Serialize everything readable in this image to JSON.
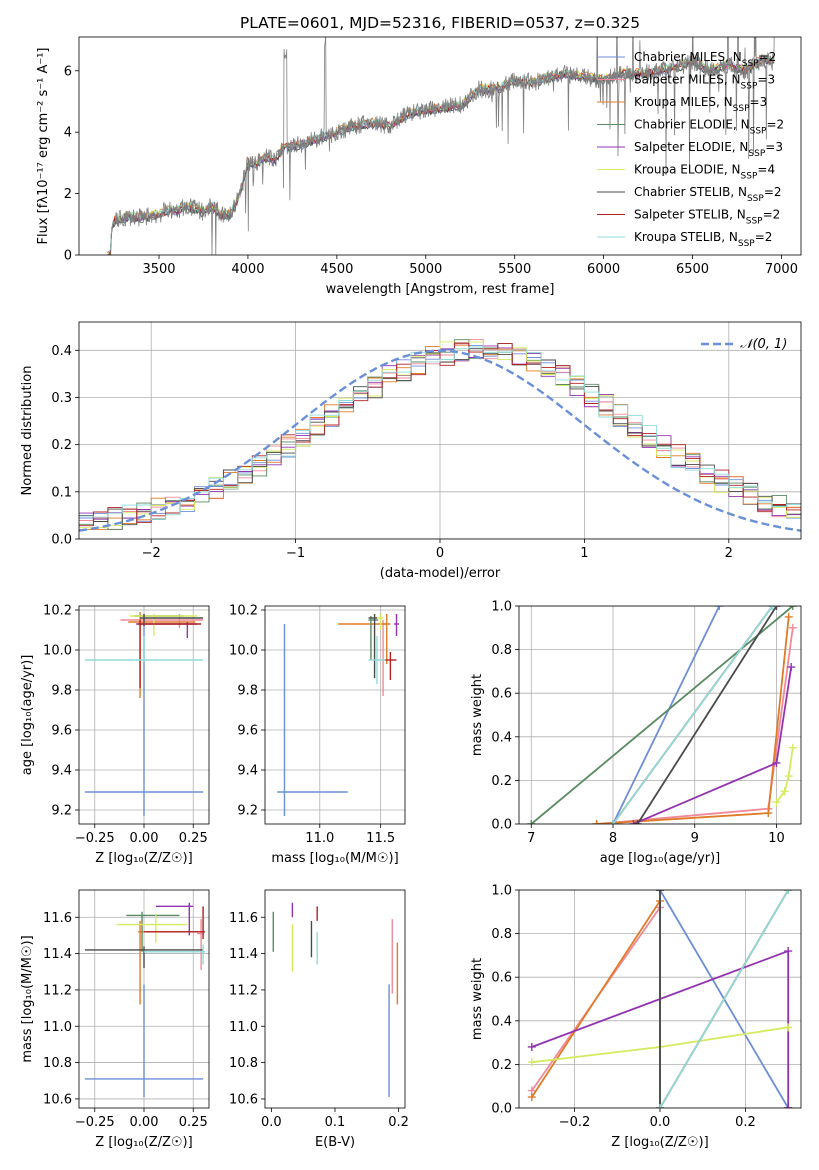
{
  "chart_data": [
    {
      "id": "spectrum",
      "type": "line",
      "title": "PLATE=0601, MJD=52316, FIBERID=0537, z=0.325",
      "xlabel": "wavelength [Angstrom, rest frame]",
      "ylabel": "Flux [fλ10⁻¹⁷ erg cm⁻² s⁻¹ A⁻¹]",
      "xlim": [
        3050,
        7110
      ],
      "ylim": [
        0,
        7.1
      ],
      "xticks": [
        3500,
        4000,
        4500,
        5000,
        5500,
        6000,
        6500,
        7000
      ],
      "yticks": [
        0,
        2,
        4,
        6
      ],
      "legend_position": "top-right",
      "observed": {
        "color": "#808080",
        "x": [
          3210,
          3250,
          3300,
          3350,
          3400,
          3450,
          3500,
          3550,
          3600,
          3650,
          3700,
          3750,
          3800,
          3850,
          3900,
          3950,
          4000,
          4050,
          4100,
          4150,
          4200,
          4300,
          4400,
          4500,
          4600,
          4700,
          4800,
          4900,
          5000,
          5100,
          5200,
          5300,
          5400,
          5500,
          5600,
          5700,
          5800,
          5900,
          6000,
          6100,
          6200,
          6300,
          6400,
          6500,
          6600,
          6700,
          6800,
          6900,
          6950
        ],
        "y": [
          0.0,
          1.1,
          1.2,
          1.25,
          1.2,
          1.3,
          1.3,
          1.5,
          1.4,
          1.6,
          1.5,
          1.4,
          1.6,
          1.3,
          1.3,
          1.9,
          3.0,
          3.0,
          3.2,
          3.1,
          3.5,
          3.6,
          3.8,
          4.0,
          4.2,
          4.3,
          4.2,
          4.6,
          4.7,
          4.8,
          4.9,
          5.4,
          5.4,
          5.7,
          5.6,
          5.8,
          5.9,
          5.8,
          5.7,
          5.9,
          5.9,
          6.0,
          6.1,
          6.3,
          6.0,
          6.2,
          6.0,
          6.4,
          6.3
        ]
      },
      "series": [
        {
          "name": "Chabrier MILES, N_SSP=2",
          "color": "#6c8ed9"
        },
        {
          "name": "Salpeter MILES, N_SSP=3",
          "color": "#f08a9a"
        },
        {
          "name": "Kroupa MILES, N_SSP=3",
          "color": "#e07b28"
        },
        {
          "name": "Chabrier ELODIE, N_SSP=2",
          "color": "#5a8a62"
        },
        {
          "name": "Salpeter ELODIE, N_SSP=3",
          "color": "#9433b0"
        },
        {
          "name": "Kroupa ELODIE, N_SSP=4",
          "color": "#d6ea60"
        },
        {
          "name": "Chabrier STELIB, N_SSP=2",
          "color": "#4a4a4a"
        },
        {
          "name": "Salpeter STELIB, N_SSP=2",
          "color": "#b22222"
        },
        {
          "name": "Kroupa STELIB, N_SSP=2",
          "color": "#8fdcd8"
        }
      ]
    },
    {
      "id": "residuals",
      "type": "line",
      "xlabel": "(data-model)/error",
      "ylabel": "Normed distribution",
      "xlim": [
        -2.5,
        2.5
      ],
      "ylim": [
        0,
        0.46
      ],
      "xticks": [
        -2,
        -1,
        0,
        1,
        2
      ],
      "yticks": [
        0.0,
        0.1,
        0.2,
        0.3,
        0.4
      ],
      "grid": true,
      "legend_position": "top-right",
      "reference": {
        "name": "𝒩(0, 1)",
        "color": "#6a90d8",
        "style": "dashed",
        "mu": 0,
        "sigma": 1
      },
      "histogram_bins": {
        "start": -2.5,
        "width": 0.1,
        "count": 50
      },
      "histogram_colors": [
        "#6c8ed9",
        "#f08a9a",
        "#e07b28",
        "#5a8a62",
        "#9433b0",
        "#d6ea60",
        "#4a4a4a",
        "#b22222",
        "#8fdcd8"
      ]
    },
    {
      "id": "age-vs-Z",
      "type": "scatter",
      "xlabel": "Z [log₁₀(Z/Z☉)]",
      "ylabel": "age [log₁₀(age/yr)]",
      "xlim": [
        -0.33,
        0.33
      ],
      "ylim": [
        9.13,
        10.22
      ],
      "xticks": [
        -0.25,
        0.0,
        0.25
      ],
      "yticks": [
        9.2,
        9.4,
        9.6,
        9.8,
        10.0,
        10.2
      ],
      "grid": true,
      "errorbars": [
        {
          "color": "#6c8ed9",
          "x": 0.0,
          "y": 9.29,
          "xerr": [
            0.3,
            0.3
          ],
          "yerr": [
            0.12,
            0.84
          ]
        },
        {
          "color": "#f08a9a",
          "x": 0.18,
          "y": 10.15,
          "xerr": [
            0.3,
            0.12
          ],
          "yerr": [
            0.04,
            0.03
          ]
        },
        {
          "color": "#e07b28",
          "x": -0.02,
          "y": 10.14,
          "xerr": [
            0.06,
            0.28
          ],
          "yerr": [
            0.38,
            0.05
          ]
        },
        {
          "color": "#5a8a62",
          "x": 0.0,
          "y": 10.17,
          "xerr": [
            0.05,
            0.2
          ],
          "yerr": [
            0.02,
            0.01
          ]
        },
        {
          "color": "#9433b0",
          "x": 0.22,
          "y": 10.13,
          "xerr": [
            0.26,
            0.05
          ],
          "yerr": [
            0.07,
            0.01
          ]
        },
        {
          "color": "#d6ea60",
          "x": 0.05,
          "y": 10.17,
          "xerr": [
            0.12,
            0.22
          ],
          "yerr": [
            0.1,
            0.01
          ]
        },
        {
          "color": "#4a4a4a",
          "x": 0.0,
          "y": 10.16,
          "xerr": [
            0.02,
            0.3
          ],
          "yerr": [
            0.04,
            0.02
          ]
        },
        {
          "color": "#b22222",
          "x": -0.02,
          "y": 10.13,
          "xerr": [
            0.01,
            0.31
          ],
          "yerr": [
            0.32,
            0.02
          ]
        },
        {
          "color": "#8fdcd8",
          "x": 0.0,
          "y": 9.95,
          "xerr": [
            0.3,
            0.3
          ],
          "yerr": [
            0.01,
            0.12
          ]
        }
      ]
    },
    {
      "id": "age-vs-mass",
      "type": "scatter",
      "xlabel": "mass [log₁₀(M/M☉)]",
      "ylabel": "",
      "xlim": [
        10.55,
        11.7
      ],
      "ylim": [
        9.13,
        10.22
      ],
      "xticks": [
        11.0,
        11.5
      ],
      "yticks": [
        9.2,
        9.4,
        9.6,
        9.8,
        10.0,
        10.2
      ],
      "grid": true,
      "errorbars": [
        {
          "color": "#6c8ed9",
          "x": 10.71,
          "y": 9.29,
          "xerr": [
            0.06,
            0.52
          ],
          "yerr": [
            0.12,
            0.84
          ]
        },
        {
          "color": "#f08a9a",
          "x": 11.52,
          "y": 10.13,
          "xerr": [
            0.02,
            0.05
          ],
          "yerr": [
            0.36,
            0.02
          ]
        },
        {
          "color": "#e07b28",
          "x": 11.55,
          "y": 10.13,
          "xerr": [
            0.4,
            0.03
          ],
          "yerr": [
            0.2,
            0.05
          ]
        },
        {
          "color": "#5a8a62",
          "x": 11.42,
          "y": 10.15,
          "xerr": [
            0.02,
            0.06
          ],
          "yerr": [
            0.2,
            0.02
          ]
        },
        {
          "color": "#9433b0",
          "x": 11.63,
          "y": 10.13,
          "xerr": [
            0.02,
            0.02
          ],
          "yerr": [
            0.06,
            0.05
          ]
        },
        {
          "color": "#d6ea60",
          "x": 11.5,
          "y": 10.16,
          "xerr": [
            0.04,
            0.02
          ],
          "yerr": [
            0.06,
            0.02
          ]
        },
        {
          "color": "#4a4a4a",
          "x": 11.45,
          "y": 10.16,
          "xerr": [
            0.05,
            0.02
          ],
          "yerr": [
            0.3,
            0.02
          ]
        },
        {
          "color": "#b22222",
          "x": 11.58,
          "y": 9.95,
          "xerr": [
            0.05,
            0.05
          ],
          "yerr": [
            0.1,
            0.04
          ]
        },
        {
          "color": "#8fdcd8",
          "x": 11.47,
          "y": 9.95,
          "xerr": [
            0.07,
            0.07
          ],
          "yerr": [
            0.12,
            0.12
          ]
        }
      ]
    },
    {
      "id": "mass-weight-vs-age",
      "type": "line",
      "xlabel": "age [log₁₀(age/yr)]",
      "ylabel": "mass weight",
      "xlim": [
        6.85,
        10.3
      ],
      "ylim": [
        0,
        1.0
      ],
      "xticks": [
        7,
        8,
        9,
        10
      ],
      "yticks": [
        0.0,
        0.2,
        0.4,
        0.6,
        0.8,
        1.0
      ],
      "grid": true,
      "series": [
        {
          "color": "#6c8ed9",
          "x": [
            8.0,
            9.3
          ],
          "y": [
            0.0,
            1.0
          ]
        },
        {
          "color": "#f08a9a",
          "x": [
            7.8,
            9.9,
            10.2
          ],
          "y": [
            0.0,
            0.07,
            0.9
          ]
        },
        {
          "color": "#e07b28",
          "x": [
            7.8,
            9.9,
            10.15
          ],
          "y": [
            0.0,
            0.05,
            0.95
          ]
        },
        {
          "color": "#5a8a62",
          "x": [
            7.0,
            10.2
          ],
          "y": [
            0.0,
            1.0
          ]
        },
        {
          "color": "#9433b0",
          "x": [
            8.25,
            10.0,
            10.18
          ],
          "y": [
            0.0,
            0.28,
            0.72
          ]
        },
        {
          "color": "#d6ea60",
          "x": [
            10.0,
            10.1,
            10.15,
            10.2
          ],
          "y": [
            0.1,
            0.15,
            0.22,
            0.35
          ]
        },
        {
          "color": "#4a4a4a",
          "x": [
            8.3,
            10.0
          ],
          "y": [
            0.0,
            1.0
          ]
        },
        {
          "color": "#b22222",
          "x": [
            8.0,
            9.95
          ],
          "y": [
            0.0,
            1.0
          ]
        },
        {
          "color": "#8fdcd8",
          "x": [
            8.0,
            9.95
          ],
          "y": [
            0.0,
            1.0
          ]
        }
      ]
    },
    {
      "id": "mass-vs-Z",
      "type": "scatter",
      "xlabel": "Z [log₁₀(Z/Z☉)]",
      "ylabel": "mass [log₁₀(M/M☉)]",
      "xlim": [
        -0.33,
        0.33
      ],
      "ylim": [
        10.55,
        11.75
      ],
      "xticks": [
        -0.25,
        0.0,
        0.25
      ],
      "yticks": [
        10.6,
        10.8,
        11.0,
        11.2,
        11.4,
        11.6
      ],
      "grid": true,
      "errorbars": [
        {
          "color": "#6c8ed9",
          "x": 0.0,
          "y": 10.71,
          "xerr": [
            0.3,
            0.3
          ],
          "yerr": [
            0.1,
            0.52
          ]
        },
        {
          "color": "#f08a9a",
          "x": 0.29,
          "y": 11.51,
          "xerr": [
            0.02,
            0.01
          ],
          "yerr": [
            0.2,
            0.08
          ]
        },
        {
          "color": "#e07b28",
          "x": -0.02,
          "y": 11.52,
          "xerr": [
            0.01,
            0.3
          ],
          "yerr": [
            0.4,
            0.06
          ]
        },
        {
          "color": "#5a8a62",
          "x": -0.01,
          "y": 11.61,
          "xerr": [
            0.08,
            0.19
          ],
          "yerr": [
            0.2,
            0.02
          ]
        },
        {
          "color": "#9433b0",
          "x": 0.23,
          "y": 11.66,
          "xerr": [
            0.17,
            0.02
          ],
          "yerr": [
            0.16,
            0.02
          ]
        },
        {
          "color": "#d6ea60",
          "x": 0.06,
          "y": 11.56,
          "xerr": [
            0.2,
            0.16
          ],
          "yerr": [
            0.1,
            0.06
          ]
        },
        {
          "color": "#4a4a4a",
          "x": 0.0,
          "y": 11.42,
          "xerr": [
            0.3,
            0.3
          ],
          "yerr": [
            0.1,
            0.02
          ]
        },
        {
          "color": "#b22222",
          "x": 0.3,
          "y": 11.52,
          "xerr": [
            0.3,
            0.01
          ],
          "yerr": [
            0.04,
            0.14
          ]
        },
        {
          "color": "#8fdcd8",
          "x": 0.3,
          "y": 11.41,
          "xerr": [
            0.3,
            0.01
          ],
          "yerr": [
            0.07,
            0.04
          ]
        }
      ]
    },
    {
      "id": "mass-vs-EBV",
      "type": "scatter",
      "xlabel": "E(B-V)",
      "ylabel": "",
      "xlim": [
        -0.01,
        0.21
      ],
      "ylim": [
        10.55,
        11.75
      ],
      "xticks": [
        0.0,
        0.1,
        0.2
      ],
      "yticks": [
        10.6,
        10.8,
        11.0,
        11.2,
        11.4,
        11.6
      ],
      "grid": false,
      "errorbars": [
        {
          "color": "#6c8ed9",
          "x": 0.185,
          "y": 10.71,
          "yerr": [
            0.1,
            0.52
          ]
        },
        {
          "color": "#f08a9a",
          "x": 0.19,
          "y": 11.43,
          "yerr": [
            0.25,
            0.16
          ]
        },
        {
          "color": "#e07b28",
          "x": 0.198,
          "y": 11.3,
          "yerr": [
            0.18,
            0.16
          ]
        },
        {
          "color": "#5a8a62",
          "x": 0.003,
          "y": 11.55,
          "yerr": [
            0.14,
            0.08
          ]
        },
        {
          "color": "#9433b0",
          "x": 0.033,
          "y": 11.64,
          "yerr": [
            0.04,
            0.04
          ]
        },
        {
          "color": "#d6ea60",
          "x": 0.033,
          "y": 11.42,
          "yerr": [
            0.12,
            0.14
          ]
        },
        {
          "color": "#4a4a4a",
          "x": 0.063,
          "y": 11.48,
          "yerr": [
            0.1,
            0.1
          ]
        },
        {
          "color": "#b22222",
          "x": 0.072,
          "y": 11.62,
          "yerr": [
            0.04,
            0.04
          ]
        },
        {
          "color": "#8fdcd8",
          "x": 0.072,
          "y": 11.44,
          "yerr": [
            0.1,
            0.08
          ]
        }
      ]
    },
    {
      "id": "mass-weight-vs-Z",
      "type": "line",
      "xlabel": "Z [log₁₀(Z/Z☉)]",
      "ylabel": "mass weight",
      "xlim": [
        -0.33,
        0.33
      ],
      "ylim": [
        0,
        1.0
      ],
      "xticks": [
        -0.2,
        0.0,
        0.2
      ],
      "yticks": [
        0.0,
        0.2,
        0.4,
        0.6,
        0.8,
        1.0
      ],
      "grid": true,
      "series": [
        {
          "color": "#6c8ed9",
          "x": [
            0.0,
            0.3
          ],
          "y": [
            1.0,
            0.0
          ]
        },
        {
          "color": "#f08a9a",
          "x": [
            -0.3,
            0.0
          ],
          "y": [
            0.08,
            0.92
          ]
        },
        {
          "color": "#e07b28",
          "x": [
            -0.3,
            0.0
          ],
          "y": [
            0.05,
            0.95
          ]
        },
        {
          "color": "#5a8a62",
          "x": [
            0.0,
            0.0
          ],
          "y": [
            0.0,
            1.0
          ]
        },
        {
          "color": "#9433b0",
          "x": [
            -0.3,
            0.3,
            0.3
          ],
          "y": [
            0.28,
            0.72,
            0.0
          ]
        },
        {
          "color": "#d6ea60",
          "x": [
            -0.3,
            0.0,
            0.3
          ],
          "y": [
            0.21,
            0.28,
            0.37
          ]
        },
        {
          "color": "#4a4a4a",
          "x": [
            0.0,
            0.0
          ],
          "y": [
            0.0,
            1.0
          ]
        },
        {
          "color": "#b22222",
          "x": [
            0.0,
            0.3
          ],
          "y": [
            0.0,
            1.0
          ]
        },
        {
          "color": "#8fdcd8",
          "x": [
            0.0,
            0.3
          ],
          "y": [
            0.0,
            1.0
          ]
        }
      ]
    }
  ]
}
